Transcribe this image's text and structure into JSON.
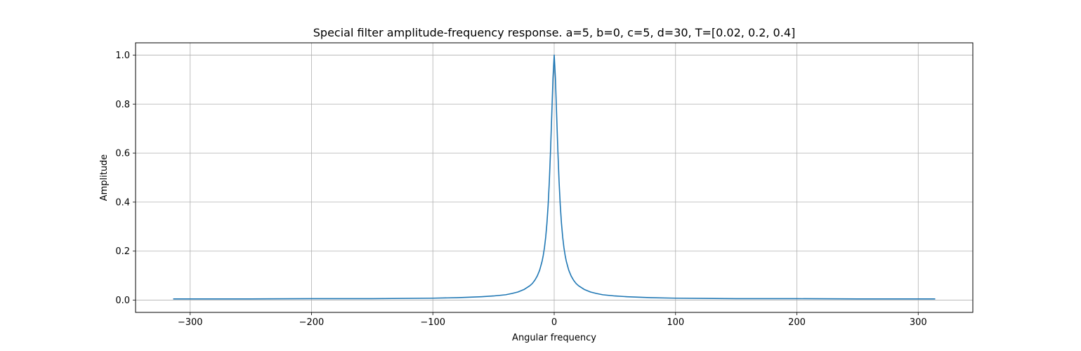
{
  "chart_data": {
    "type": "line",
    "title": "Special filter amplitude-frequency response. a=5, b=0, c=5, d=30, T=[0.02, 0.2, 0.4]",
    "xlabel": "Angular frequency",
    "ylabel": "Amplitude",
    "xlim": [
      -345,
      345
    ],
    "ylim": [
      -0.05,
      1.05
    ],
    "xticks": [
      -300,
      -200,
      -100,
      0,
      100,
      200,
      300
    ],
    "xtick_labels": [
      "−300",
      "−200",
      "−100",
      "0",
      "100",
      "200",
      "300"
    ],
    "yticks": [
      0.0,
      0.2,
      0.4,
      0.6,
      0.8,
      1.0
    ],
    "ytick_labels": [
      "0.0",
      "0.2",
      "0.4",
      "0.6",
      "0.8",
      "1.0"
    ],
    "grid": true,
    "series": [
      {
        "color": "#1f77b4",
        "x": [
          -314,
          -300,
          -250,
          -200,
          -150,
          -100,
          -80,
          -60,
          -50,
          -40,
          -35,
          -30,
          -25,
          -20,
          -18,
          -16,
          -14,
          -12,
          -10,
          -9,
          -8,
          -7,
          -6,
          -5,
          -4,
          -3,
          -2,
          -1,
          0,
          1,
          2,
          3,
          4,
          5,
          6,
          7,
          8,
          9,
          10,
          12,
          14,
          16,
          18,
          20,
          25,
          30,
          35,
          40,
          50,
          60,
          80,
          100,
          150,
          200,
          250,
          300,
          314
        ],
        "y": [
          0.005,
          0.005,
          0.005,
          0.006,
          0.006,
          0.008,
          0.01,
          0.014,
          0.017,
          0.022,
          0.027,
          0.033,
          0.043,
          0.059,
          0.068,
          0.081,
          0.098,
          0.122,
          0.158,
          0.183,
          0.215,
          0.257,
          0.313,
          0.387,
          0.486,
          0.612,
          0.757,
          0.905,
          1.0,
          0.905,
          0.757,
          0.612,
          0.486,
          0.387,
          0.313,
          0.257,
          0.215,
          0.183,
          0.158,
          0.122,
          0.098,
          0.081,
          0.068,
          0.059,
          0.043,
          0.033,
          0.027,
          0.022,
          0.017,
          0.014,
          0.01,
          0.008,
          0.006,
          0.006,
          0.005,
          0.005,
          0.005
        ]
      }
    ]
  }
}
